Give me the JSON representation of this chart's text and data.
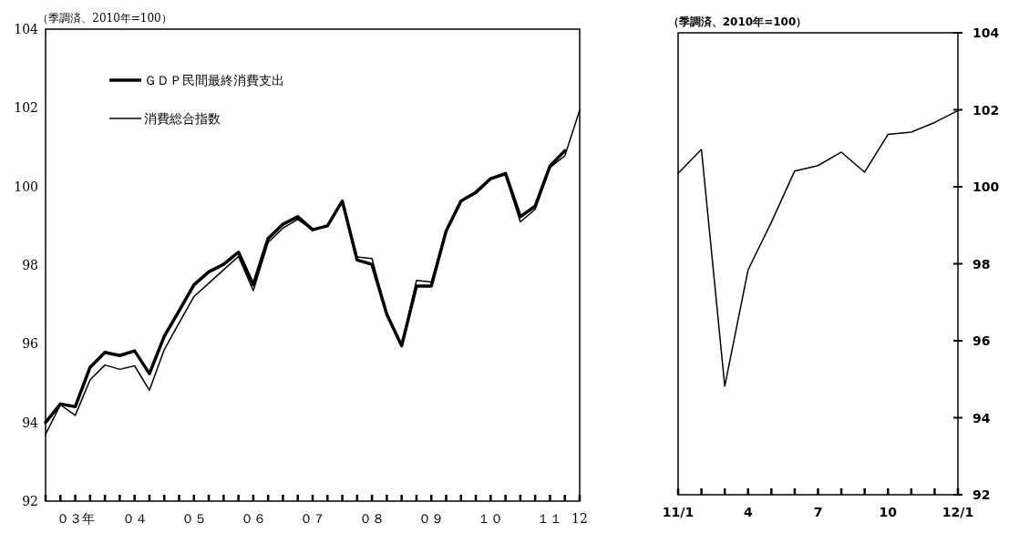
{
  "chart_data": [
    {
      "type": "line",
      "title": "（季調済、2010年=100）",
      "legend": "top left",
      "grid": false,
      "categories": [
        null,
        null,
        "０３年",
        null,
        null,
        null,
        "０４",
        null,
        null,
        null,
        "０５",
        null,
        null,
        null,
        "０６",
        null,
        null,
        null,
        "０７",
        null,
        null,
        null,
        "０８",
        null,
        null,
        null,
        "０９",
        null,
        null,
        null,
        "１０",
        null,
        null,
        null,
        "１１",
        null,
        "12"
      ],
      "ylim": [
        92,
        104
      ],
      "yticks": [
        92,
        94,
        96,
        98,
        100,
        102,
        104
      ],
      "series": [
        {
          "name": "ＧＤＰ民間最終消費支出",
          "color": "#000000",
          "values": [
            94.0,
            94.47,
            94.4,
            95.4,
            95.78,
            95.7,
            95.82,
            95.24,
            96.19,
            96.84,
            97.5,
            97.83,
            98.02,
            98.33,
            97.5,
            98.68,
            99.04,
            99.23,
            98.9,
            99.0,
            99.63,
            98.13,
            98.02,
            96.75,
            95.95,
            97.47,
            97.47,
            98.87,
            99.63,
            99.85,
            100.2,
            100.33,
            99.23,
            99.5,
            100.52,
            100.91,
            null
          ]
        },
        {
          "name": "消費総合指数",
          "color": "#000000",
          "values": [
            93.7,
            94.45,
            94.18,
            95.08,
            95.46,
            95.35,
            95.44,
            94.82,
            95.85,
            96.53,
            97.2,
            97.54,
            97.88,
            98.22,
            97.35,
            98.58,
            98.94,
            99.16,
            98.9,
            98.99,
            99.63,
            98.21,
            98.17,
            96.75,
            95.95,
            97.61,
            97.57,
            98.87,
            99.63,
            99.82,
            100.18,
            100.3,
            99.1,
            99.42,
            100.48,
            100.78,
            101.94
          ]
        }
      ]
    },
    {
      "type": "line",
      "title": "（季調済、2010年=100）",
      "grid": false,
      "categories": [
        "11/1",
        null,
        null,
        "4",
        null,
        null,
        "7",
        null,
        null,
        "10",
        null,
        null,
        "12/1"
      ],
      "y2lim": [
        92,
        104
      ],
      "y2ticks": [
        92,
        94,
        96,
        98,
        100,
        102,
        104
      ],
      "series": [
        {
          "color": "#000000",
          "axis": "y2",
          "values": [
            100.35,
            100.97,
            94.82,
            97.84,
            99.08,
            100.41,
            100.55,
            100.9,
            100.38,
            101.36,
            101.42,
            101.67,
            101.98
          ]
        }
      ]
    }
  ]
}
